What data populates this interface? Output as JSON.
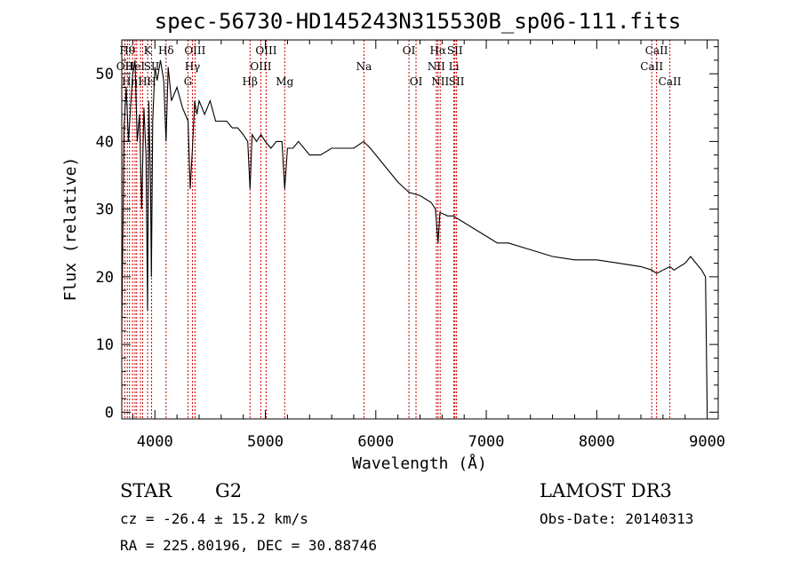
{
  "chart_data": {
    "type": "line",
    "title": "spec-56730-HD145243N315530B_sp06-111.fits",
    "xlabel": "Wavelength (Å)",
    "ylabel": "Flux (relative)",
    "xlim": [
      3700,
      9100
    ],
    "ylim": [
      -1,
      55
    ],
    "xticks": [
      4000,
      5000,
      6000,
      7000,
      8000,
      9000
    ],
    "yticks": [
      0,
      10,
      20,
      30,
      40,
      50
    ],
    "grid": false,
    "series": [
      {
        "x": [
          3700,
          3720,
          3740,
          3760,
          3780,
          3800,
          3820,
          3840,
          3860,
          3880,
          3900,
          3920,
          3933,
          3945,
          3960,
          3968,
          3980,
          4000,
          4020,
          4050,
          4080,
          4101,
          4120,
          4150,
          4200,
          4250,
          4300,
          4320,
          4340,
          4360,
          4380,
          4400,
          4450,
          4500,
          4550,
          4600,
          4650,
          4700,
          4750,
          4800,
          4840,
          4861,
          4880,
          4920,
          4960,
          5000,
          5050,
          5100,
          5150,
          5175,
          5200,
          5250,
          5300,
          5400,
          5500,
          5600,
          5700,
          5800,
          5890,
          5950,
          6000,
          6100,
          6200,
          6300,
          6400,
          6500,
          6540,
          6563,
          6580,
          6650,
          6700,
          6800,
          6900,
          7000,
          7100,
          7200,
          7400,
          7600,
          7800,
          8000,
          8200,
          8400,
          8500,
          8542,
          8600,
          8662,
          8700,
          8750,
          8800,
          8850,
          8900,
          8950,
          8985,
          9000
        ],
        "y": [
          12,
          42,
          48,
          40,
          45,
          50,
          52,
          40,
          44,
          30,
          45,
          38,
          15,
          46,
          34,
          20,
          43,
          51,
          49,
          52,
          49,
          40,
          51,
          46,
          48,
          45,
          43,
          33,
          39,
          46,
          44,
          46,
          44,
          46,
          43,
          43,
          43,
          42,
          42,
          41,
          40,
          33,
          41,
          40,
          41,
          40,
          39,
          40,
          40,
          33,
          39,
          39,
          40,
          38,
          38,
          39,
          39,
          39,
          40,
          39,
          38,
          36,
          34,
          32.5,
          32,
          31,
          30,
          25,
          29.5,
          29,
          29,
          28,
          27,
          26,
          25,
          25,
          24,
          23,
          22.5,
          22.5,
          22,
          21.5,
          21,
          20.5,
          21,
          21.5,
          21,
          21.5,
          22,
          23,
          22,
          21,
          20,
          0
        ]
      }
    ],
    "lines": [
      {
        "x": 3727,
        "label": "OII",
        "row": 2
      },
      {
        "x": 3750,
        "label": "Hθ",
        "row": 1
      },
      {
        "x": 3770,
        "label": "Hη",
        "row": 3
      },
      {
        "x": 3798,
        "label": "",
        "row": 0
      },
      {
        "x": 3820,
        "label": "HeI",
        "row": 2
      },
      {
        "x": 3835,
        "label": "",
        "row": 0
      },
      {
        "x": 3869,
        "label": "",
        "row": 0
      },
      {
        "x": 3889,
        "label": "H",
        "row": 3
      },
      {
        "x": 3934,
        "label": "K",
        "row": 1
      },
      {
        "x": 3969,
        "label": "H",
        "row": 3
      },
      {
        "x": 3970,
        "label": "SII",
        "row": 2
      },
      {
        "x": 4101,
        "label": "Hδ",
        "row": 1
      },
      {
        "x": 4300,
        "label": "G",
        "row": 3
      },
      {
        "x": 4340,
        "label": "Hγ",
        "row": 2
      },
      {
        "x": 4363,
        "label": "OIII",
        "row": 1
      },
      {
        "x": 4861,
        "label": "Hβ",
        "row": 3
      },
      {
        "x": 4959,
        "label": "OIII",
        "row": 2
      },
      {
        "x": 5007,
        "label": "OIII",
        "row": 1
      },
      {
        "x": 5175,
        "label": "Mg",
        "row": 3
      },
      {
        "x": 5893,
        "label": "Na",
        "row": 2
      },
      {
        "x": 6300,
        "label": "OI",
        "row": 1
      },
      {
        "x": 6364,
        "label": "OI",
        "row": 3
      },
      {
        "x": 6548,
        "label": "NII",
        "row": 2
      },
      {
        "x": 6563,
        "label": "Hα",
        "row": 1
      },
      {
        "x": 6583,
        "label": "NII",
        "row": 3
      },
      {
        "x": 6707,
        "label": "Li",
        "row": 2
      },
      {
        "x": 6716,
        "label": "SII",
        "row": 1
      },
      {
        "x": 6731,
        "label": "SII",
        "row": 3
      },
      {
        "x": 8498,
        "label": "CaII",
        "row": 2
      },
      {
        "x": 8542,
        "label": "CaII",
        "row": 1
      },
      {
        "x": 8662,
        "label": "CaII",
        "row": 3
      }
    ]
  },
  "info": {
    "class": "STAR",
    "subclass": "G2",
    "survey": "LAMOST DR3",
    "cz": "cz = -26.4 ± 15.2 km/s",
    "obs_date": "Obs-Date: 20140313",
    "radec": "RA = 225.80196, DEC =  30.88746"
  },
  "colors": {
    "spectrum": "#000000",
    "line_markers": "#cc0000",
    "axes": "#000000"
  }
}
